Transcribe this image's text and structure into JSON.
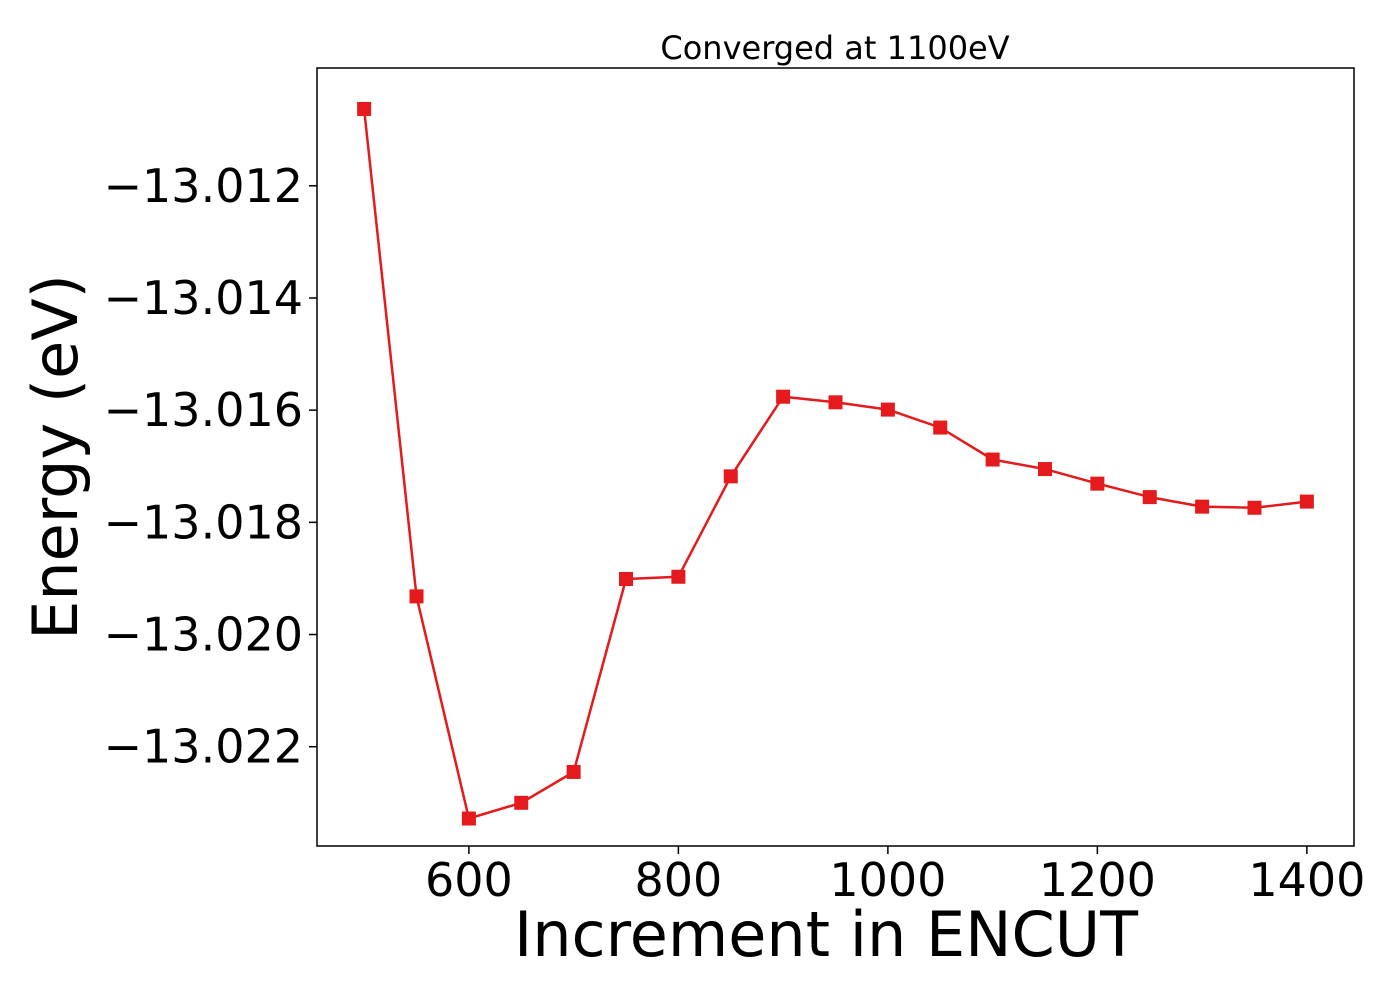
{
  "chart_data": {
    "type": "line",
    "title": "Converged at 1100eV",
    "xlabel": "Increment in ENCUT",
    "ylabel": "Energy (eV)",
    "xlim": [
      455,
      1445
    ],
    "ylim": [
      -13.02377,
      -13.0099
    ],
    "xticks": [
      600,
      800,
      1000,
      1200,
      1400
    ],
    "xtick_labels": [
      "600",
      "800",
      "1000",
      "1200",
      "1400"
    ],
    "yticks": [
      -13.012,
      -13.014,
      -13.016,
      -13.018,
      -13.02,
      -13.022
    ],
    "ytick_labels": [
      "−13.012",
      "−13.014",
      "−13.016",
      "−13.018",
      "−13.020",
      "−13.022"
    ],
    "grid": false,
    "legend": "none",
    "series": [
      {
        "color": "#e41a1c",
        "marker": "square",
        "x": [
          500,
          550,
          600,
          650,
          700,
          750,
          800,
          850,
          900,
          950,
          1000,
          1050,
          1100,
          1150,
          1200,
          1250,
          1300,
          1350,
          1400
        ],
        "y": [
          -13.01063,
          -13.01932,
          -13.02328,
          -13.023,
          -13.02245,
          -13.01901,
          -13.01897,
          -13.01718,
          -13.01576,
          -13.01586,
          -13.01599,
          -13.01631,
          -13.01688,
          -13.01705,
          -13.01731,
          -13.01755,
          -13.01772,
          -13.01774,
          -13.01763
        ]
      }
    ]
  }
}
